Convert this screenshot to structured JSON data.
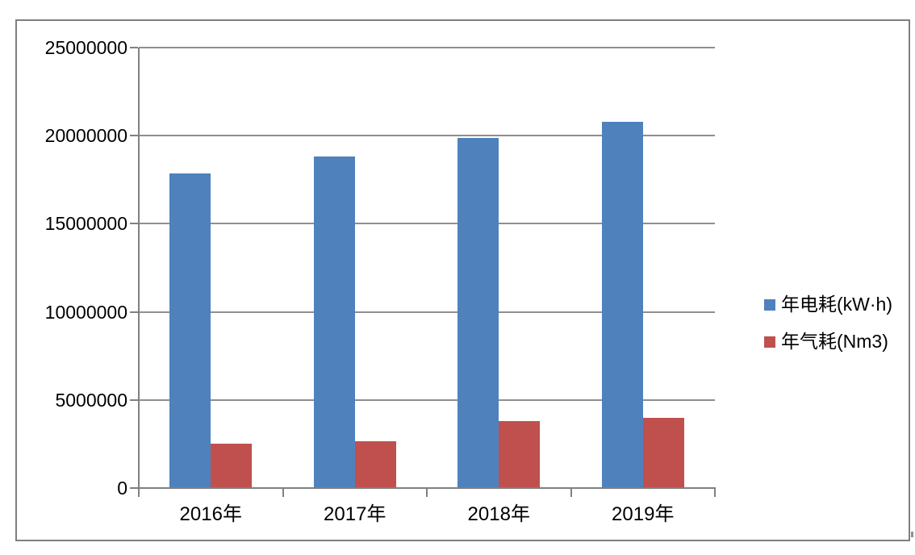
{
  "chart_data": {
    "type": "bar",
    "title": "",
    "categories": [
      "2016年",
      "2017年",
      "2018年",
      "2019年"
    ],
    "series": [
      {
        "name": "年电耗(kW·h)",
        "key": "electricity",
        "color": "#4F81BD",
        "values": [
          17850000,
          18800000,
          19850000,
          20800000
        ]
      },
      {
        "name": "年气耗(Nm3)",
        "key": "gas",
        "color": "#C0504D",
        "values": [
          2500000,
          2650000,
          3800000,
          4000000
        ]
      }
    ],
    "ylim": [
      0,
      25000000
    ],
    "ytick_interval": 5000000,
    "ytick_labels": [
      "0",
      "5000000",
      "10000000",
      "15000000",
      "20000000",
      "25000000"
    ],
    "grid": true,
    "legend_position": "right"
  },
  "colors": {
    "electricity_series": "#4F81BD",
    "gas_series": "#C0504D",
    "gridline": "#8F8F8F",
    "axis": "#808080",
    "frame_border": "#7F7F7F",
    "text": "#000000",
    "background": "#FFFFFF"
  }
}
